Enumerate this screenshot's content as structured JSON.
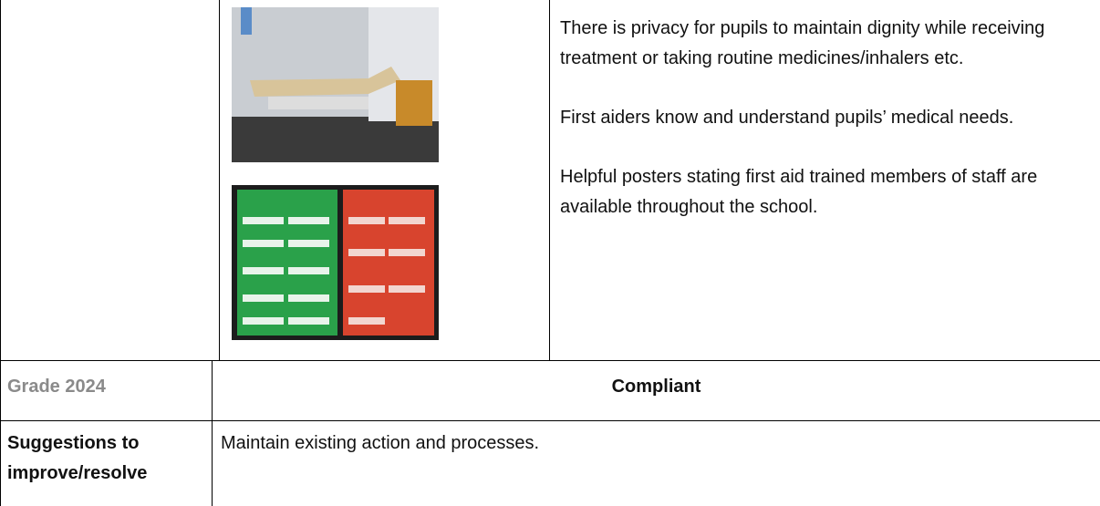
{
  "findings": [
    "There is privacy for pupils to maintain dignity while receiving treatment or taking routine medicines/inhalers etc.",
    "First aiders know and understand pupils’ medical needs.",
    "Helpful posters stating first aid trained members of staff are available throughout the school."
  ],
  "grade": {
    "label": "Grade 2024",
    "value": "Compliant"
  },
  "suggestions": {
    "label": "Suggestions to improve/resolve",
    "value": "Maintain existing action and processes."
  }
}
